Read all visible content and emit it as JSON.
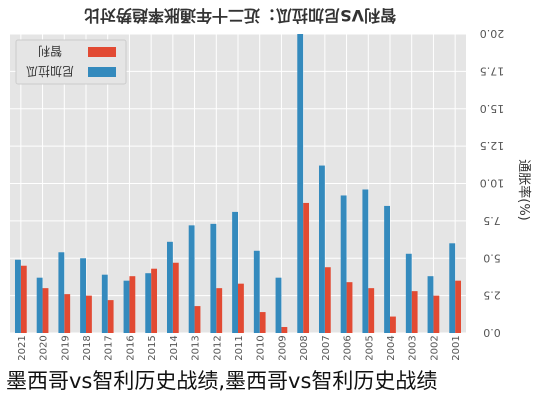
{
  "chart_data": {
    "type": "bar",
    "title": "智利VS尼加拉瓜：近二十年通胀率趋势对比",
    "ylabel": "通胀率(%)",
    "xlabel": "",
    "ylim": [
      0,
      20
    ],
    "yticks": [
      "0.0",
      "2.5",
      "5.0",
      "7.5",
      "10.0",
      "12.5",
      "15.0",
      "17.5",
      "20.0"
    ],
    "grid": true,
    "legend_position": "top-left",
    "categories": [
      "2021",
      "2020",
      "2019",
      "2018",
      "2017",
      "2016",
      "2015",
      "2014",
      "2013",
      "2012",
      "2011",
      "2010",
      "2009",
      "2008",
      "2007",
      "2006",
      "2005",
      "2004",
      "2003",
      "2002",
      "2001"
    ],
    "series": [
      {
        "name": "智利",
        "color": "#e24a33",
        "values": [
          4.5,
          3.0,
          2.6,
          2.5,
          2.2,
          3.8,
          4.3,
          4.7,
          1.8,
          3.0,
          3.3,
          1.4,
          0.4,
          8.7,
          4.4,
          3.4,
          3.0,
          1.1,
          2.8,
          2.5,
          3.5
        ]
      },
      {
        "name": "尼加拉瓜",
        "color": "#348abd",
        "values": [
          4.9,
          3.7,
          5.4,
          5.0,
          3.9,
          3.5,
          4.0,
          6.1,
          7.2,
          7.3,
          8.1,
          5.5,
          3.7,
          20.0,
          11.2,
          9.2,
          9.6,
          8.5,
          5.3,
          3.8,
          6.0
        ]
      }
    ]
  },
  "caption": "墨西哥vs智利历史战绩,墨西哥vs智利历史战绩"
}
